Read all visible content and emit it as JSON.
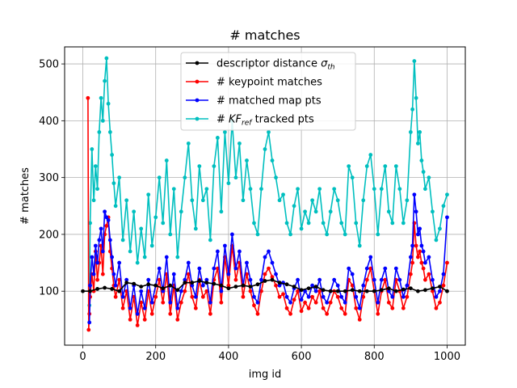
{
  "chart_data": {
    "type": "line",
    "title": "# matches",
    "xlabel": "img id",
    "ylabel": "# matches",
    "xlim": [
      -50,
      1050
    ],
    "ylim": [
      5,
      530
    ],
    "xticks": [
      0,
      200,
      400,
      600,
      800,
      1000
    ],
    "yticks": [
      100,
      200,
      300,
      400,
      500
    ],
    "grid": true,
    "legend_position": "top-center",
    "series": [
      {
        "name": "descriptor distance σth",
        "legend_main": "descriptor distance ",
        "legend_sym": "σ",
        "legend_sub": "th",
        "color": "#000000",
        "x": [
          0,
          20,
          40,
          60,
          80,
          100,
          120,
          140,
          160,
          180,
          200,
          220,
          240,
          260,
          280,
          300,
          320,
          340,
          360,
          380,
          400,
          420,
          440,
          460,
          480,
          500,
          520,
          540,
          560,
          580,
          600,
          620,
          640,
          660,
          680,
          700,
          720,
          740,
          760,
          780,
          800,
          820,
          840,
          860,
          880,
          900,
          920,
          940,
          960,
          980,
          1000
        ],
        "y": [
          100,
          100,
          104,
          106,
          104,
          100,
          115,
          113,
          108,
          112,
          110,
          105,
          110,
          102,
          115,
          115,
          118,
          115,
          113,
          110,
          105,
          108,
          110,
          108,
          112,
          118,
          120,
          115,
          112,
          108,
          102,
          105,
          108,
          102,
          100,
          100,
          100,
          102,
          100,
          100,
          100,
          102,
          105,
          100,
          103,
          105,
          100,
          102,
          105,
          108,
          100
        ]
      },
      {
        "name": "# keypoint matches",
        "legend_main": "# keypoint matches",
        "color": "#ff0000",
        "x": [
          14,
          16,
          18,
          20,
          25,
          30,
          35,
          40,
          45,
          50,
          55,
          60,
          65,
          70,
          75,
          80,
          85,
          90,
          100,
          110,
          120,
          130,
          140,
          150,
          160,
          170,
          180,
          190,
          200,
          210,
          220,
          230,
          240,
          250,
          260,
          270,
          280,
          290,
          300,
          310,
          320,
          330,
          340,
          350,
          360,
          370,
          380,
          390,
          400,
          410,
          420,
          430,
          440,
          450,
          460,
          470,
          480,
          490,
          500,
          510,
          520,
          530,
          540,
          550,
          560,
          570,
          580,
          590,
          600,
          610,
          620,
          630,
          640,
          650,
          660,
          670,
          680,
          690,
          700,
          710,
          720,
          730,
          740,
          750,
          760,
          770,
          780,
          790,
          800,
          810,
          820,
          830,
          840,
          850,
          860,
          870,
          880,
          890,
          900,
          905,
          910,
          915,
          920,
          925,
          930,
          935,
          940,
          950,
          960,
          970,
          980,
          990,
          1000
        ],
        "y": [
          440,
          32,
          60,
          90,
          130,
          100,
          170,
          120,
          150,
          180,
          130,
          200,
          215,
          230,
          170,
          140,
          110,
          90,
          120,
          70,
          100,
          50,
          90,
          40,
          80,
          50,
          100,
          60,
          90,
          120,
          80,
          130,
          60,
          110,
          50,
          80,
          100,
          130,
          90,
          70,
          120,
          90,
          100,
          60,
          120,
          140,
          80,
          160,
          110,
          180,
          120,
          150,
          90,
          130,
          100,
          75,
          60,
          100,
          130,
          140,
          125,
          110,
          90,
          95,
          70,
          60,
          85,
          100,
          65,
          80,
          70,
          90,
          80,
          100,
          70,
          60,
          80,
          100,
          90,
          70,
          60,
          120,
          110,
          70,
          50,
          90,
          120,
          140,
          100,
          60,
          100,
          120,
          80,
          70,
          120,
          100,
          70,
          90,
          130,
          150,
          220,
          180,
          160,
          170,
          150,
          140,
          120,
          130,
          100,
          70,
          80,
          110,
          150
        ]
      },
      {
        "name": "# matched map pts",
        "legend_main": "# matched map pts",
        "color": "#0000ff",
        "x": [
          18,
          20,
          25,
          30,
          35,
          40,
          45,
          50,
          55,
          60,
          65,
          70,
          75,
          80,
          85,
          90,
          100,
          110,
          120,
          130,
          140,
          150,
          160,
          170,
          180,
          190,
          200,
          210,
          220,
          230,
          240,
          250,
          260,
          270,
          280,
          290,
          300,
          310,
          320,
          330,
          340,
          350,
          360,
          370,
          380,
          390,
          400,
          410,
          420,
          430,
          440,
          450,
          460,
          470,
          480,
          490,
          500,
          510,
          520,
          530,
          540,
          550,
          560,
          570,
          580,
          590,
          600,
          610,
          620,
          630,
          640,
          650,
          660,
          670,
          680,
          690,
          700,
          710,
          720,
          730,
          740,
          750,
          760,
          770,
          780,
          790,
          800,
          810,
          820,
          830,
          840,
          850,
          860,
          870,
          880,
          890,
          900,
          905,
          910,
          915,
          920,
          925,
          930,
          935,
          940,
          950,
          960,
          970,
          980,
          990,
          1000
        ],
        "y": [
          45,
          110,
          160,
          130,
          180,
          150,
          190,
          210,
          170,
          240,
          230,
          225,
          190,
          160,
          130,
          110,
          150,
          90,
          120,
          70,
          110,
          60,
          100,
          70,
          120,
          80,
          110,
          140,
          100,
          160,
          80,
          130,
          70,
          100,
          120,
          150,
          110,
          90,
          140,
          110,
          120,
          80,
          140,
          170,
          100,
          180,
          130,
          200,
          140,
          170,
          110,
          150,
          120,
          90,
          80,
          120,
          160,
          170,
          150,
          130,
          110,
          115,
          90,
          80,
          105,
          120,
          85,
          100,
          90,
          110,
          100,
          120,
          90,
          80,
          100,
          120,
          110,
          90,
          80,
          140,
          130,
          90,
          70,
          110,
          140,
          160,
          120,
          80,
          120,
          140,
          100,
          90,
          140,
          120,
          90,
          110,
          160,
          180,
          270,
          240,
          200,
          210,
          180,
          170,
          150,
          160,
          120,
          90,
          100,
          130,
          230
        ]
      },
      {
        "name": "# KFref tracked pts",
        "legend_main": "# ",
        "legend_sym": "KF",
        "legend_sub": "ref",
        "legend_tail": "  tracked pts",
        "color": "#00bfbf",
        "x": [
          18,
          20,
          25,
          30,
          35,
          40,
          45,
          50,
          55,
          60,
          65,
          70,
          75,
          80,
          85,
          90,
          100,
          110,
          120,
          130,
          140,
          150,
          160,
          170,
          180,
          190,
          200,
          210,
          220,
          230,
          240,
          250,
          260,
          270,
          280,
          290,
          300,
          310,
          320,
          330,
          340,
          350,
          360,
          370,
          380,
          390,
          400,
          410,
          420,
          430,
          440,
          450,
          460,
          470,
          480,
          490,
          500,
          510,
          520,
          530,
          540,
          550,
          560,
          570,
          580,
          590,
          600,
          610,
          620,
          630,
          640,
          650,
          660,
          670,
          680,
          690,
          700,
          710,
          720,
          730,
          740,
          750,
          760,
          770,
          780,
          790,
          800,
          810,
          820,
          830,
          840,
          850,
          860,
          870,
          880,
          890,
          900,
          905,
          910,
          915,
          920,
          925,
          930,
          935,
          940,
          950,
          960,
          970,
          980,
          990,
          1000
        ],
        "y": [
          75,
          220,
          350,
          260,
          320,
          280,
          380,
          440,
          400,
          470,
          510,
          430,
          380,
          340,
          290,
          250,
          300,
          190,
          260,
          170,
          240,
          150,
          210,
          160,
          270,
          180,
          230,
          300,
          220,
          330,
          200,
          280,
          160,
          240,
          300,
          360,
          260,
          210,
          320,
          260,
          280,
          190,
          320,
          370,
          240,
          380,
          290,
          400,
          300,
          360,
          260,
          330,
          280,
          220,
          200,
          280,
          350,
          380,
          330,
          300,
          260,
          270,
          220,
          200,
          250,
          280,
          210,
          240,
          220,
          260,
          240,
          280,
          220,
          200,
          240,
          280,
          260,
          220,
          200,
          320,
          300,
          220,
          180,
          260,
          320,
          340,
          280,
          200,
          280,
          320,
          240,
          220,
          320,
          280,
          220,
          260,
          380,
          420,
          505,
          440,
          360,
          380,
          330,
          310,
          280,
          300,
          240,
          190,
          210,
          250,
          270
        ]
      }
    ]
  }
}
